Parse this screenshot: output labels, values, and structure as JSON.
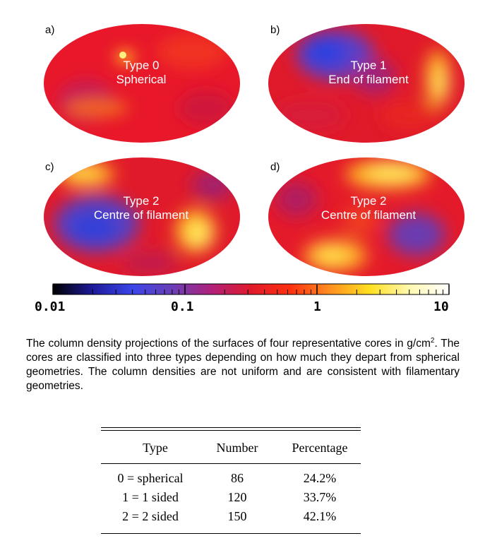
{
  "panels": [
    {
      "letter": "a)",
      "title_line1": "Type 0",
      "title_line2": "Spherical"
    },
    {
      "letter": "b)",
      "title_line1": "Type 1",
      "title_line2": "End of filament"
    },
    {
      "letter": "c)",
      "title_line1": "Type 2",
      "title_line2": "Centre of filament"
    },
    {
      "letter": "d)",
      "title_line1": "Type 2",
      "title_line2": "Centre of filament"
    }
  ],
  "colorbar": {
    "scale": "log",
    "range": [
      0.01,
      10
    ],
    "labels": [
      "0.01",
      "0.1",
      "1",
      "10"
    ],
    "colors": [
      "#000000",
      "#1e1a9a",
      "#3a46e8",
      "#6a3fb8",
      "#b0207a",
      "#e01a2a",
      "#ff3010",
      "#ff9020",
      "#ffe020",
      "#fff8b0",
      "#ffffff"
    ]
  },
  "caption": {
    "part1": "The column density projections of the surfaces of four representative cores in g/cm",
    "superscript": "2",
    "part2": ". The cores are classified into three types depending on how much they depart from spherical geometries. The column densities are not uniform and are consistent with filamentary geometries."
  },
  "table": {
    "headers": [
      "Type",
      "Number",
      "Percentage"
    ],
    "rows": [
      [
        "0 = spherical",
        "86",
        "24.2%"
      ],
      [
        "1 = 1 sided",
        "120",
        "33.7%"
      ],
      [
        "2 = 2 sided",
        "150",
        "42.1%"
      ]
    ]
  }
}
